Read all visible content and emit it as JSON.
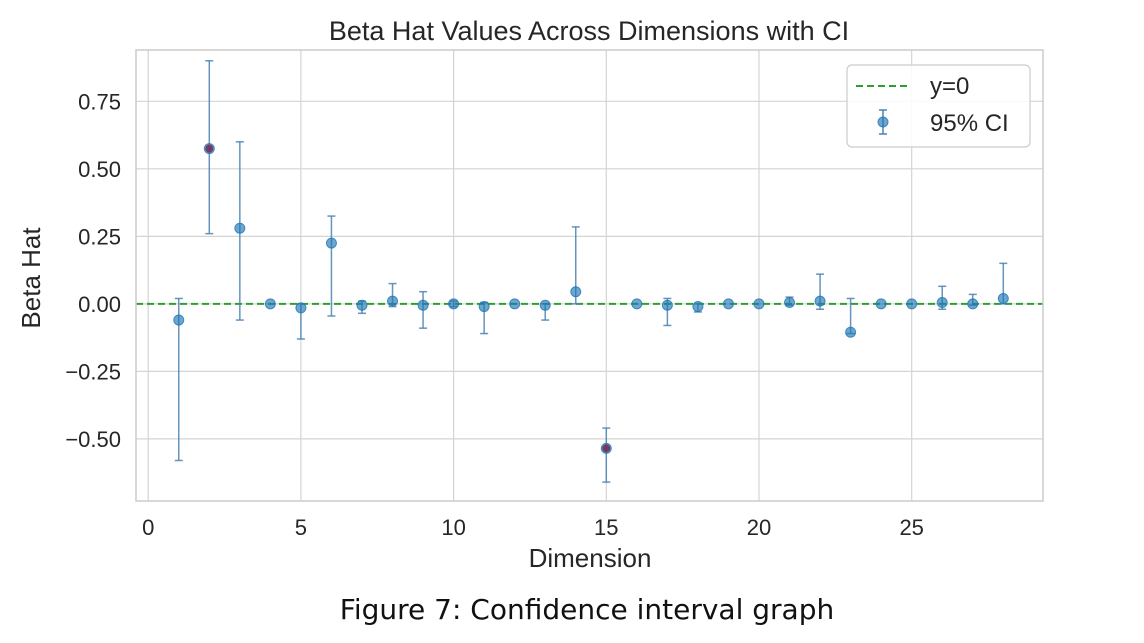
{
  "caption": "Figure 7:  Confidence interval graph",
  "chart_data": {
    "type": "scatter",
    "title": "Beta Hat Values Across Dimensions with CI",
    "xlabel": "Dimension",
    "ylabel": "Beta Hat",
    "xlim": [
      -0.4,
      29.3
    ],
    "ylim": [
      -0.73,
      0.94
    ],
    "xticks": [
      0,
      5,
      10,
      15,
      20,
      25
    ],
    "yticks": [
      -0.5,
      -0.25,
      0.0,
      0.25,
      0.5,
      0.75
    ],
    "ytick_labels": [
      "−0.50",
      "−0.25",
      "0.00",
      "0.25",
      "0.50",
      "0.75"
    ],
    "grid": true,
    "legend": {
      "placement": "upper-right",
      "entries": [
        "y=0",
        "95% CI"
      ]
    },
    "reference_line": {
      "y": 0,
      "label": "y=0",
      "color": "#2ca02c",
      "style": "dashed"
    },
    "series": [
      {
        "name": "95% CI",
        "color": "#1f77b4",
        "points": [
          {
            "x": 1,
            "y": -0.06,
            "lower": -0.58,
            "upper": 0.02
          },
          {
            "x": 2,
            "y": 0.575,
            "lower": 0.26,
            "upper": 0.9,
            "highlight": true
          },
          {
            "x": 3,
            "y": 0.28,
            "lower": -0.06,
            "upper": 0.6
          },
          {
            "x": 4,
            "y": 0.0
          },
          {
            "x": 5,
            "y": -0.015,
            "lower": -0.13,
            "upper": 0.0
          },
          {
            "x": 6,
            "y": 0.225,
            "lower": -0.045,
            "upper": 0.325
          },
          {
            "x": 7,
            "y": -0.005,
            "lower": -0.035,
            "upper": 0.01
          },
          {
            "x": 8,
            "y": 0.01,
            "lower": -0.01,
            "upper": 0.075
          },
          {
            "x": 9,
            "y": -0.005,
            "lower": -0.09,
            "upper": 0.045
          },
          {
            "x": 10,
            "y": 0.0,
            "lower": -0.01,
            "upper": 0.01
          },
          {
            "x": 11,
            "y": -0.01,
            "lower": -0.11,
            "upper": 0.005
          },
          {
            "x": 12,
            "y": 0.0
          },
          {
            "x": 13,
            "y": -0.005,
            "lower": -0.06,
            "upper": 0.0
          },
          {
            "x": 14,
            "y": 0.045,
            "lower": 0.0,
            "upper": 0.285
          },
          {
            "x": 15,
            "y": -0.535,
            "lower": -0.66,
            "upper": -0.46,
            "highlight": true
          },
          {
            "x": 16,
            "y": 0.0
          },
          {
            "x": 17,
            "y": -0.005,
            "lower": -0.08,
            "upper": 0.02
          },
          {
            "x": 18,
            "y": -0.01,
            "lower": -0.03,
            "upper": 0.0
          },
          {
            "x": 19,
            "y": 0.0
          },
          {
            "x": 20,
            "y": 0.0
          },
          {
            "x": 21,
            "y": 0.005,
            "lower": -0.005,
            "upper": 0.025
          },
          {
            "x": 22,
            "y": 0.01,
            "lower": -0.02,
            "upper": 0.11
          },
          {
            "x": 23,
            "y": -0.105,
            "lower": -0.11,
            "upper": 0.02
          },
          {
            "x": 24,
            "y": 0.0
          },
          {
            "x": 25,
            "y": 0.0
          },
          {
            "x": 26,
            "y": 0.005,
            "lower": -0.02,
            "upper": 0.065
          },
          {
            "x": 27,
            "y": 0.0,
            "lower": -0.005,
            "upper": 0.035
          },
          {
            "x": 28,
            "y": 0.02,
            "lower": 0.0,
            "upper": 0.15
          }
        ]
      }
    ],
    "highlight_color": "#7b2d5a"
  }
}
